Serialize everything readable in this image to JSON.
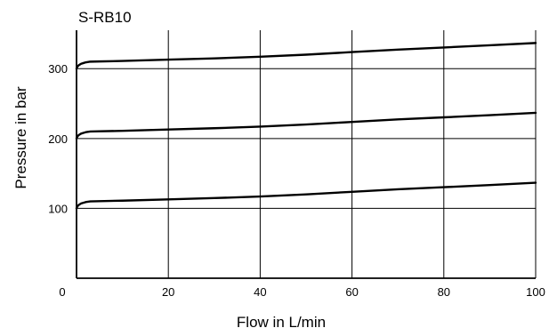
{
  "chart_data": {
    "type": "line",
    "title": "S-RB10",
    "xlabel": "Flow in L/min",
    "ylabel": "Pressure in bar",
    "xlim": [
      0,
      100
    ],
    "ylim": [
      0,
      355
    ],
    "xticks": [
      0,
      20,
      40,
      60,
      80,
      100
    ],
    "yticks": [
      100,
      200,
      300
    ],
    "xtick_labels": [
      "0",
      "20",
      "40",
      "60",
      "80",
      "100"
    ],
    "ytick_labels": [
      "100",
      "200",
      "300"
    ],
    "grid": true,
    "legend": "none",
    "line_color": "#000000",
    "series": [
      {
        "x": [
          0,
          0.2,
          0.5,
          1,
          1.5,
          2,
          3,
          5,
          10,
          20,
          30,
          40,
          50,
          60,
          70,
          80,
          90,
          100
        ],
        "values": [
          300,
          303,
          305,
          307,
          308,
          309,
          310,
          310.3,
          311,
          312.9,
          314.7,
          317,
          320,
          323.7,
          327.3,
          330.3,
          333.4,
          336.7
        ]
      },
      {
        "x": [
          0,
          0.2,
          0.5,
          1,
          1.5,
          2,
          3,
          5,
          10,
          20,
          30,
          40,
          50,
          60,
          70,
          80,
          90,
          100
        ],
        "values": [
          200,
          203,
          205,
          207,
          208,
          209,
          210,
          210.3,
          211,
          212.9,
          214.7,
          217,
          220,
          223.7,
          227.3,
          230.3,
          233.4,
          236.7
        ]
      },
      {
        "x": [
          0,
          0.2,
          0.5,
          1,
          1.5,
          2,
          3,
          5,
          10,
          20,
          30,
          40,
          50,
          60,
          70,
          80,
          90,
          100
        ],
        "values": [
          100,
          103,
          105,
          107,
          108,
          109,
          110,
          110.3,
          111,
          112.9,
          114.7,
          117,
          120,
          123.7,
          127.3,
          130.3,
          133.4,
          136.7
        ]
      }
    ]
  }
}
